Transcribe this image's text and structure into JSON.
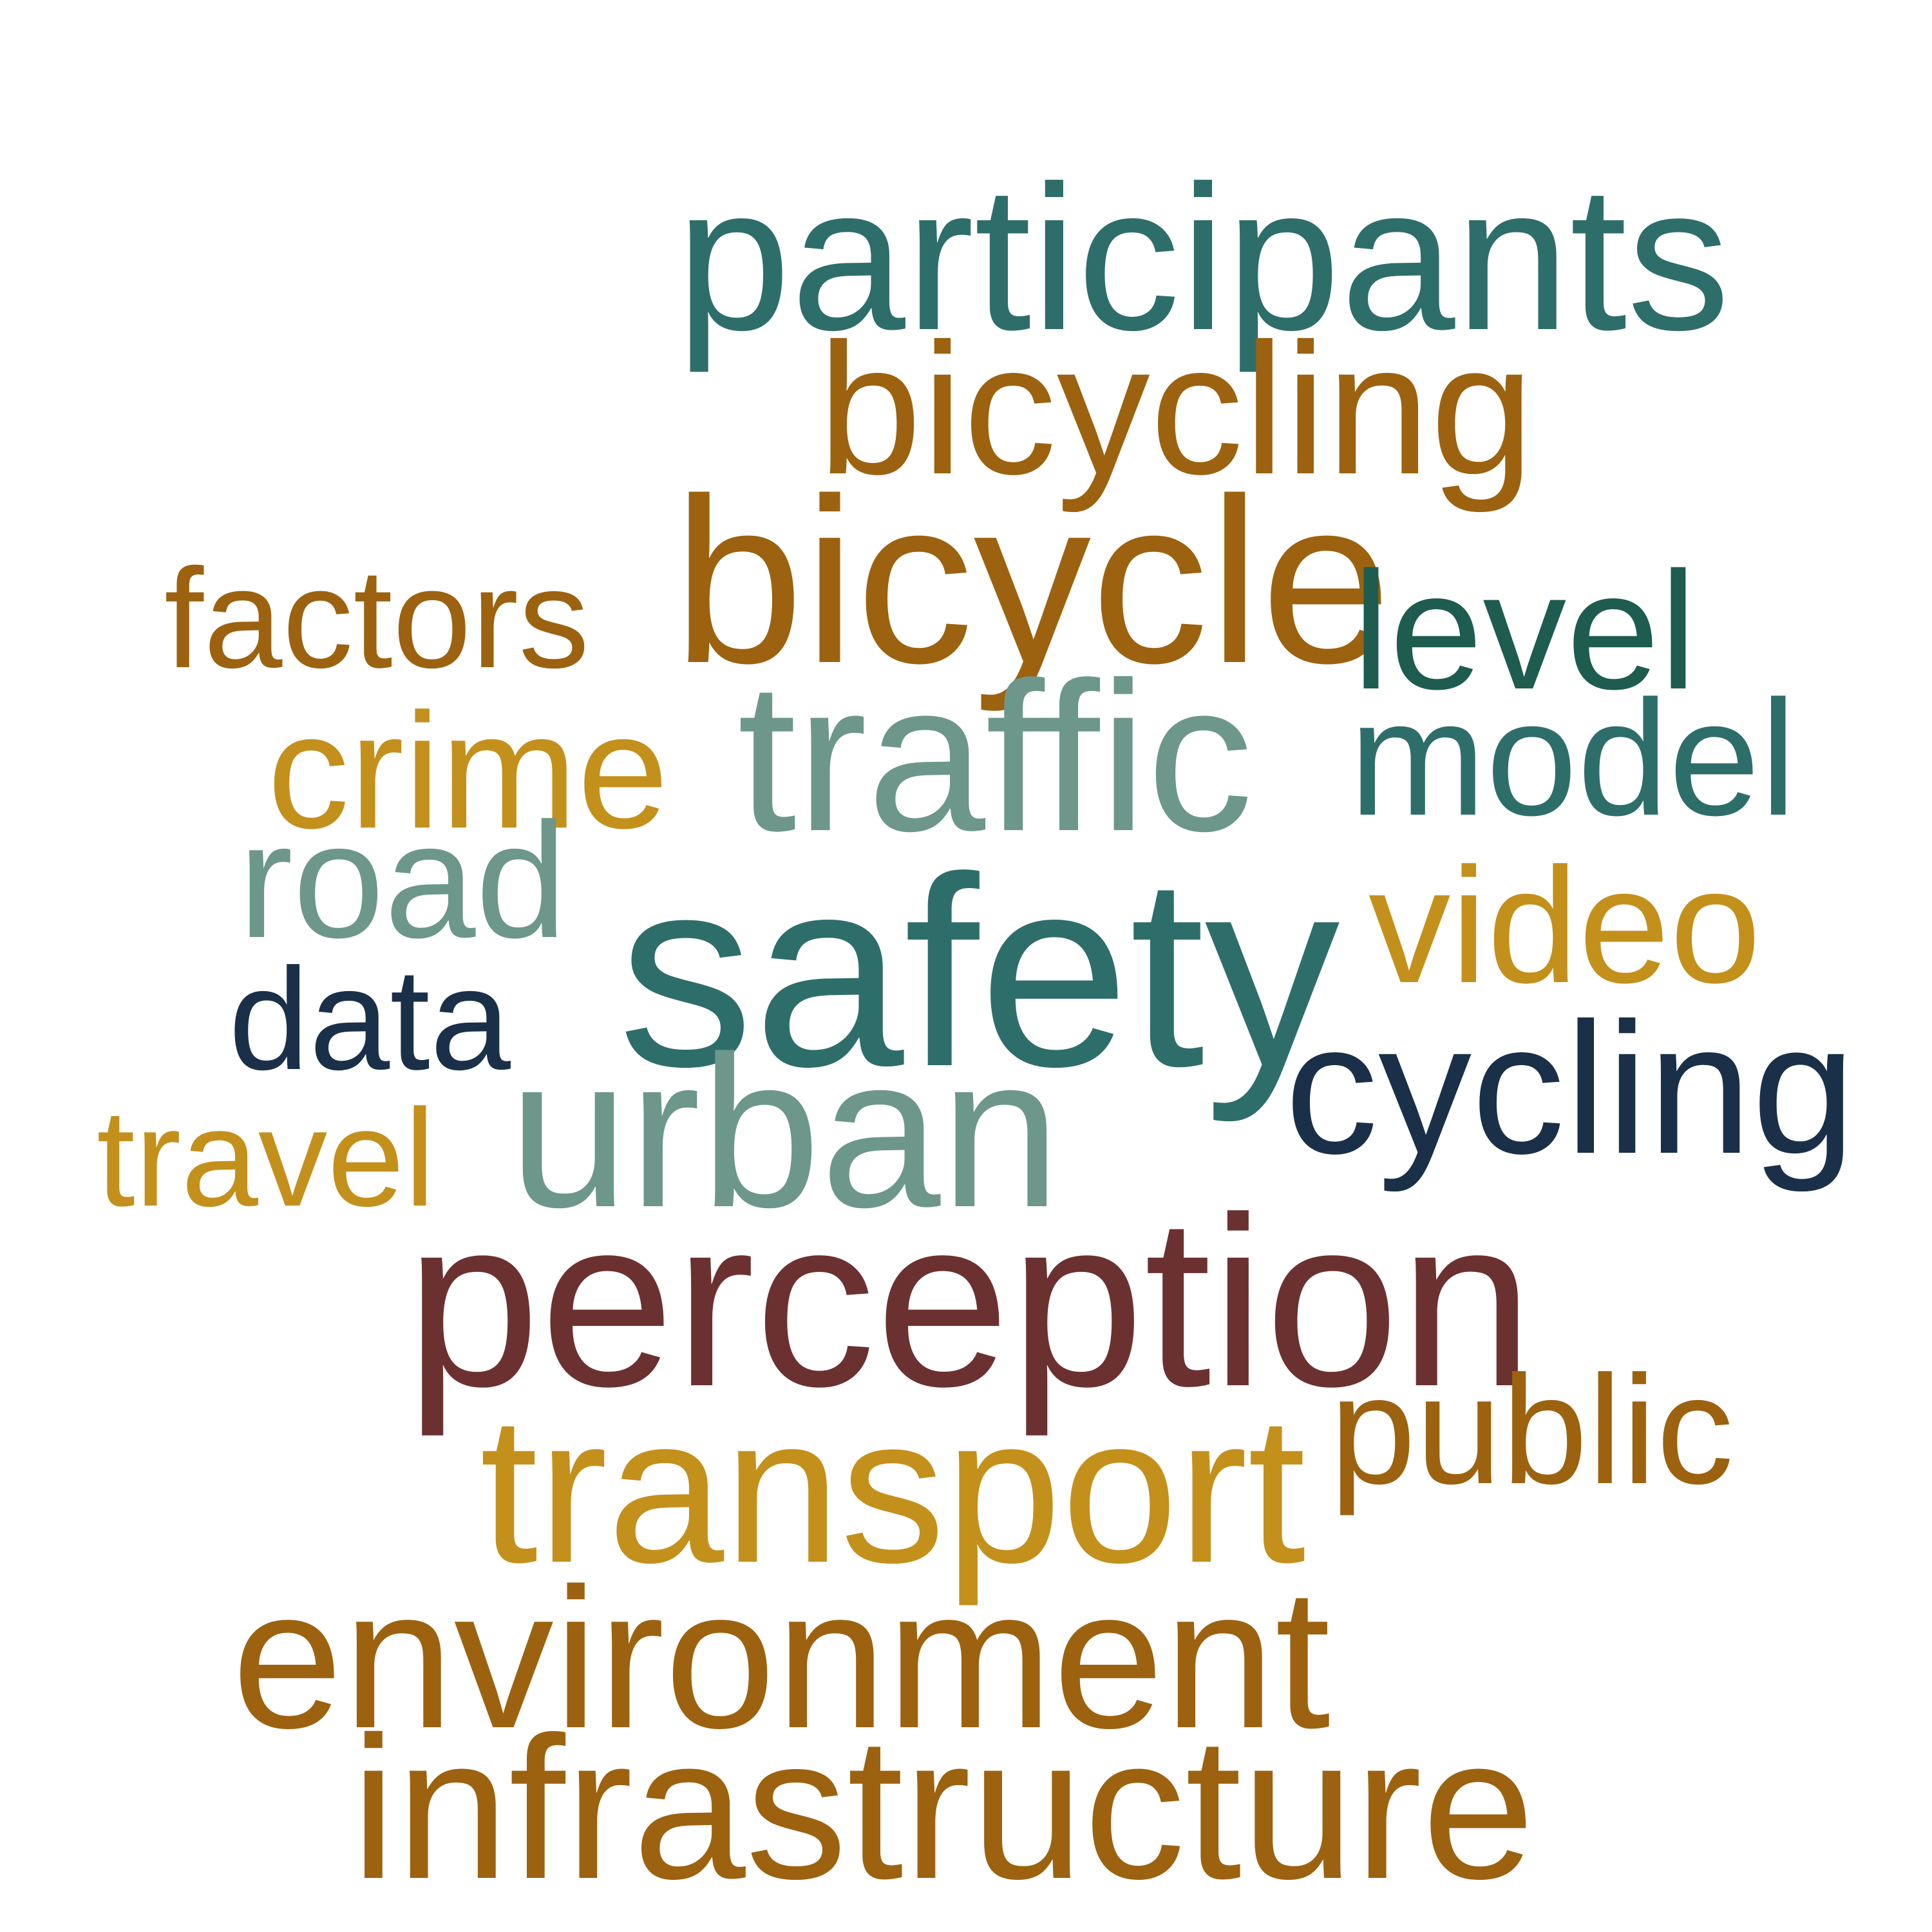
{
  "words": {
    "participants": {
      "text": "participants",
      "color": "#2E6E6A"
    },
    "bicycling": {
      "text": "bicycling",
      "color": "#9C620F"
    },
    "bicycle": {
      "text": "bicycle",
      "color": "#9C620F"
    },
    "factors": {
      "text": "factors",
      "color": "#9C620F"
    },
    "level": {
      "text": "level",
      "color": "#1E5C50"
    },
    "crime": {
      "text": "crime",
      "color": "#C4901C"
    },
    "traffic": {
      "text": "traffic",
      "color": "#6D978B"
    },
    "model": {
      "text": "model",
      "color": "#2E6E6A"
    },
    "road": {
      "text": "road",
      "color": "#6D978B"
    },
    "safety": {
      "text": "safety",
      "color": "#2E6E6A"
    },
    "video": {
      "text": "video",
      "color": "#C4901C"
    },
    "data": {
      "text": "data",
      "color": "#1A3048"
    },
    "cycling": {
      "text": "cycling",
      "color": "#1A3048"
    },
    "travel": {
      "text": "travel",
      "color": "#C4901C"
    },
    "urban": {
      "text": "urban",
      "color": "#6D978B"
    },
    "perception": {
      "text": "perception",
      "color": "#6B3130"
    },
    "public": {
      "text": "public",
      "color": "#9C620F"
    },
    "transport": {
      "text": "transport",
      "color": "#C4901C"
    },
    "environment": {
      "text": "environment",
      "color": "#9C620F"
    },
    "infrastructure": {
      "text": "infrastructure",
      "color": "#9C620F"
    }
  }
}
